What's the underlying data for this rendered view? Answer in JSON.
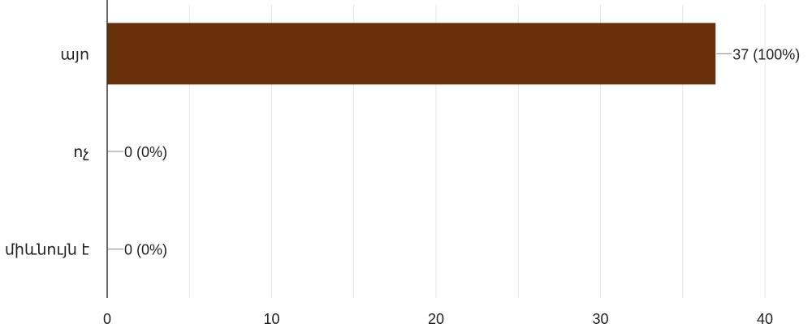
{
  "chart_data": {
    "type": "bar",
    "orientation": "horizontal",
    "categories": [
      "այո",
      "ոչ",
      "միևնույն է"
    ],
    "values": [
      37,
      0,
      0
    ],
    "value_labels": [
      "37 (100%)",
      "0 (0%)",
      "0 (0%)"
    ],
    "xlim": [
      0,
      40
    ],
    "x_ticks": [
      0,
      10,
      20,
      30,
      40
    ],
    "x_tick_labels": [
      "0",
      "10",
      "20",
      "30",
      "40"
    ],
    "grid": true,
    "colors": {
      "bar": "#68300b",
      "grid": "#e6e6e6",
      "axis": "#333333",
      "text": "#222222",
      "leader": "#888888"
    }
  }
}
